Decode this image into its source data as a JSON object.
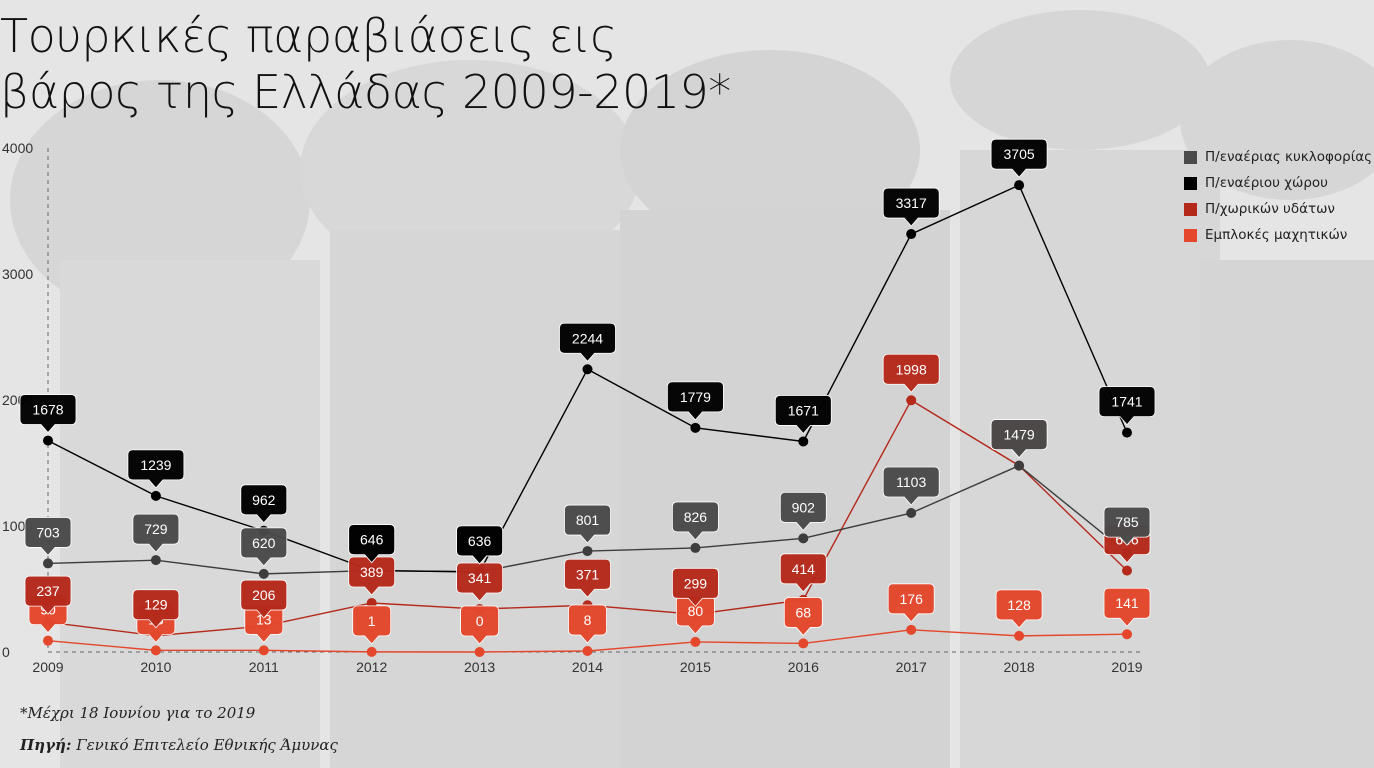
{
  "title_line1": "Τουρκικές παραβιάσεις εις",
  "title_line2": "βάρος της Ελλάδας 2009-2019*",
  "footnote": "*Μέχρι 18 Ιουνίου για το 2019",
  "source_label": "Πηγή:",
  "source_text": "Γενικό Επιτελείο Εθνικής Άμυνας",
  "chart_data": {
    "type": "line",
    "categories": [
      "2009",
      "2010",
      "2011",
      "2012",
      "2013",
      "2014",
      "2015",
      "2016",
      "2017",
      "2018",
      "2019"
    ],
    "ylim": [
      0,
      4000
    ],
    "yticks": [
      "0",
      "1000",
      "2000",
      "3000",
      "4000"
    ],
    "grid": false,
    "legend_position": "top-right",
    "series": [
      {
        "name": "Π/εναέριας κυκλοφορίας",
        "color": "#3d3d3d",
        "values": [
          703,
          729,
          620,
          646,
          636,
          801,
          826,
          902,
          1103,
          1479,
          785
        ]
      },
      {
        "name": "Π/εναέριου χώρου",
        "color": "#000000",
        "values": [
          1678,
          1239,
          962,
          646,
          636,
          2244,
          1779,
          1671,
          3317,
          3705,
          1741
        ]
      },
      {
        "name": "Π/χωρικών υδάτων",
        "color": "#b5291b",
        "values": [
          237,
          129,
          206,
          389,
          341,
          371,
          299,
          414,
          1998,
          1479,
          646
        ]
      },
      {
        "name": "Εμπλοκές μαχητικών",
        "color": "#e4472c",
        "values": [
          90,
          13,
          13,
          1,
          0,
          8,
          80,
          68,
          176,
          128,
          141
        ]
      }
    ]
  }
}
